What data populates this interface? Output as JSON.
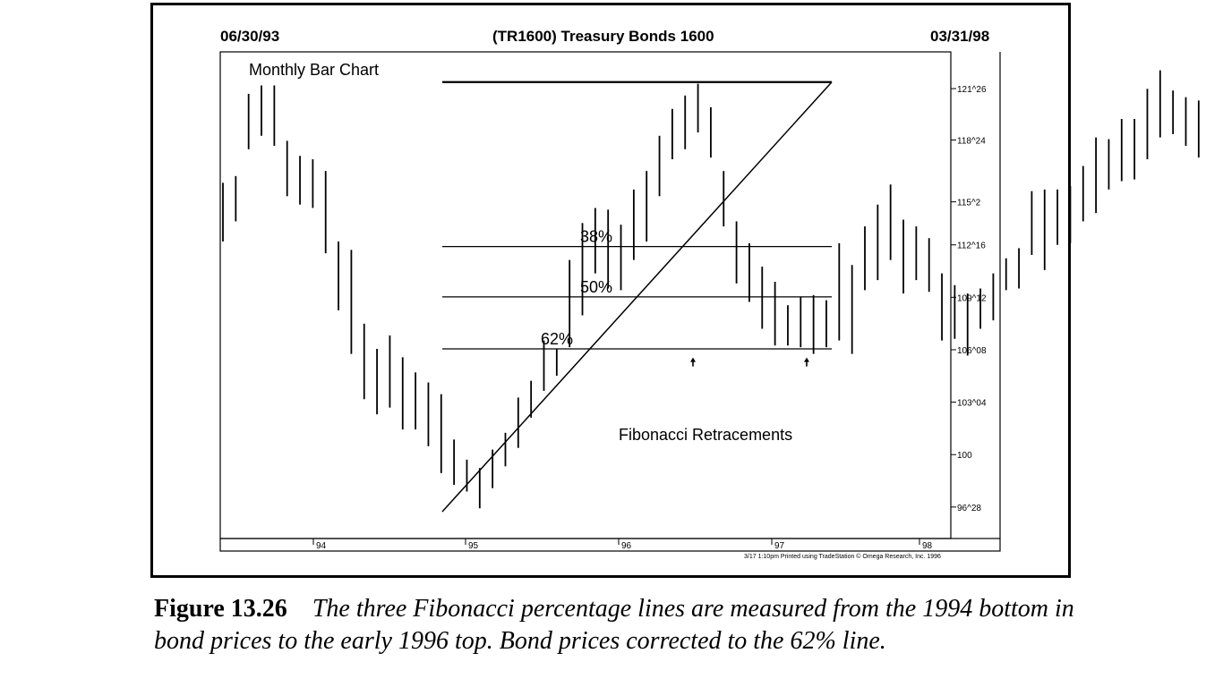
{
  "header": {
    "start_date": "06/30/93",
    "title": "(TR1600) Treasury Bonds 1600",
    "end_date": "03/31/98"
  },
  "footer_note": "3/17 1:10pm Printed using TradeStation © Omega Research, Inc. 1996",
  "caption": {
    "label": "Figure 13.26",
    "text": "The three Fibonacci percentage lines are measured from the 1994 bottom in bond prices to the early 1996 top. Bond prices corrected to the 62% line."
  },
  "chart_data": {
    "type": "bar",
    "title": "(TR1600) Treasury Bonds 1600",
    "subtitle": "Monthly Bar Chart",
    "annotation": "Fibonacci Retracements",
    "grid": false,
    "x_axis": {
      "start_year": 1993.5,
      "end_year": 1998.25,
      "ticks": [
        1994,
        1995,
        1996,
        1997,
        1998
      ],
      "tick_labels": [
        "94",
        "95",
        "96",
        "97",
        "98"
      ]
    },
    "y_axis": {
      "range": [
        95,
        124
      ],
      "ticks": [
        96.875,
        100,
        103.125,
        106.25,
        109.375,
        112.5,
        115.0625,
        118.75,
        121.8125
      ],
      "tick_labels": [
        "96^28",
        "100",
        "103^04",
        "106^08",
        "109^12",
        "112^16",
        "115^2",
        "118^24",
        "121^26"
      ],
      "side": "right"
    },
    "bars": [
      {
        "low": 112.7,
        "high": 116.2
      },
      {
        "low": 113.9,
        "high": 116.6
      },
      {
        "low": 118.2,
        "high": 121.5
      },
      {
        "low": 119.0,
        "high": 122.0
      },
      {
        "low": 118.4,
        "high": 122.0
      },
      {
        "low": 115.4,
        "high": 118.7
      },
      {
        "low": 114.9,
        "high": 117.8
      },
      {
        "low": 114.7,
        "high": 117.6
      },
      {
        "low": 112.0,
        "high": 116.9
      },
      {
        "low": 108.6,
        "high": 112.7
      },
      {
        "low": 106.0,
        "high": 112.2
      },
      {
        "low": 103.3,
        "high": 107.8
      },
      {
        "low": 102.4,
        "high": 106.3
      },
      {
        "low": 102.8,
        "high": 107.1
      },
      {
        "low": 101.5,
        "high": 105.8
      },
      {
        "low": 101.5,
        "high": 104.9
      },
      {
        "low": 100.5,
        "high": 104.3
      },
      {
        "low": 98.9,
        "high": 103.6
      },
      {
        "low": 98.2,
        "high": 100.9
      },
      {
        "low": 97.8,
        "high": 99.7
      },
      {
        "low": 96.8,
        "high": 99.2
      },
      {
        "low": 98.0,
        "high": 100.3
      },
      {
        "low": 99.3,
        "high": 101.3
      },
      {
        "low": 100.4,
        "high": 103.4
      },
      {
        "low": 102.2,
        "high": 104.4
      },
      {
        "low": 103.8,
        "high": 106.8
      },
      {
        "low": 104.7,
        "high": 106.3
      },
      {
        "low": 106.4,
        "high": 111.6
      },
      {
        "low": 108.3,
        "high": 113.8
      },
      {
        "low": 110.8,
        "high": 114.7
      },
      {
        "low": 109.9,
        "high": 114.6
      },
      {
        "low": 109.8,
        "high": 113.7
      },
      {
        "low": 111.6,
        "high": 115.8
      },
      {
        "low": 112.7,
        "high": 116.9
      },
      {
        "low": 115.4,
        "high": 119.0
      },
      {
        "low": 117.6,
        "high": 120.6
      },
      {
        "low": 118.2,
        "high": 121.4
      },
      {
        "low": 119.2,
        "high": 122.1
      },
      {
        "low": 117.7,
        "high": 120.7
      },
      {
        "low": 113.6,
        "high": 116.9
      },
      {
        "low": 110.2,
        "high": 113.9
      },
      {
        "low": 109.1,
        "high": 112.6
      },
      {
        "low": 107.5,
        "high": 111.2
      },
      {
        "low": 106.5,
        "high": 110.3
      },
      {
        "low": 106.5,
        "high": 108.9
      },
      {
        "low": 106.4,
        "high": 109.4
      },
      {
        "low": 106.0,
        "high": 109.5
      },
      {
        "low": 106.4,
        "high": 109.2
      },
      {
        "low": 106.8,
        "high": 112.6
      },
      {
        "low": 106.0,
        "high": 111.3
      },
      {
        "low": 109.8,
        "high": 113.6
      },
      {
        "low": 110.4,
        "high": 114.9
      },
      {
        "low": 111.6,
        "high": 116.1
      },
      {
        "low": 109.6,
        "high": 114.0
      },
      {
        "low": 110.4,
        "high": 113.6
      },
      {
        "low": 109.7,
        "high": 112.9
      },
      {
        "low": 106.8,
        "high": 110.8
      },
      {
        "low": 106.9,
        "high": 110.1
      },
      {
        "low": 105.9,
        "high": 109.6
      },
      {
        "low": 107.5,
        "high": 109.9
      },
      {
        "low": 108.0,
        "high": 110.8
      },
      {
        "low": 109.8,
        "high": 111.7
      },
      {
        "low": 109.9,
        "high": 112.3
      },
      {
        "low": 111.9,
        "high": 115.7
      },
      {
        "low": 111.0,
        "high": 115.8
      },
      {
        "low": 112.5,
        "high": 115.8
      },
      {
        "low": 112.6,
        "high": 116.0
      },
      {
        "low": 113.9,
        "high": 117.2
      },
      {
        "low": 114.4,
        "high": 118.9
      },
      {
        "low": 115.8,
        "high": 118.8
      },
      {
        "low": 116.3,
        "high": 120.0
      },
      {
        "low": 116.4,
        "high": 120.0
      },
      {
        "low": 117.6,
        "high": 121.8
      },
      {
        "low": 118.9,
        "high": 122.9
      },
      {
        "low": 119.1,
        "high": 121.7
      },
      {
        "low": 118.4,
        "high": 121.3
      },
      {
        "low": 117.7,
        "high": 121.1
      }
    ],
    "fibonacci": {
      "low": {
        "x": 1994.87,
        "y": 96.6
      },
      "high": {
        "x": 1997.35,
        "y": 122.2
      },
      "high_line_from": 1994.87,
      "levels": [
        {
          "label": "38%",
          "y": 112.4
        },
        {
          "label": "50%",
          "y": 109.4
        },
        {
          "label": "62%",
          "y": 106.3
        }
      ]
    },
    "arrows": [
      {
        "x": 1996.45,
        "y": 106.0
      },
      {
        "x": 1997.18,
        "y": 106.0
      }
    ]
  }
}
